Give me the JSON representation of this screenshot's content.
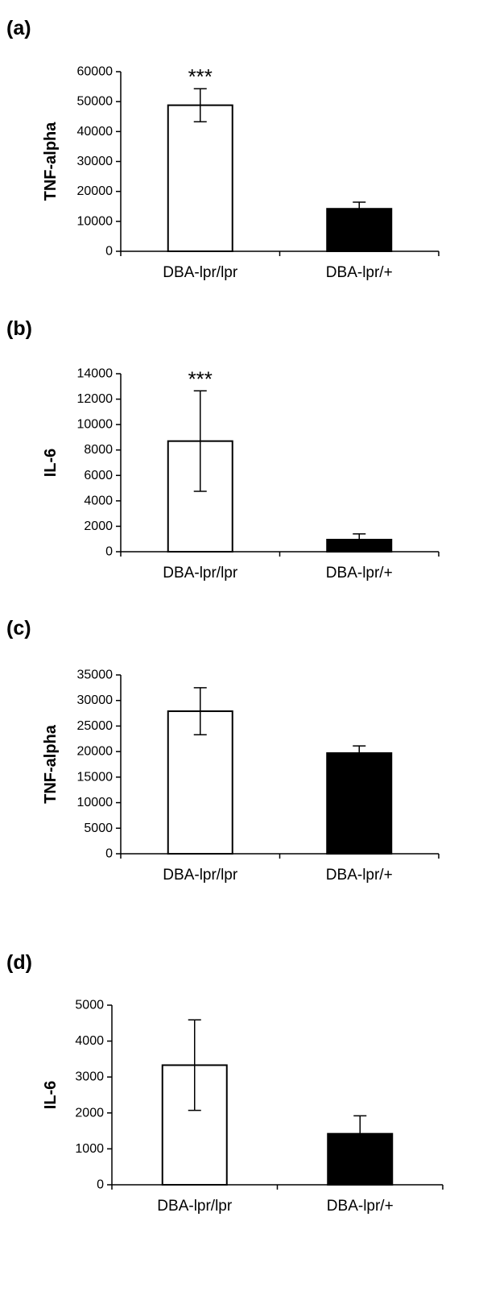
{
  "chart_data": [
    {
      "panel": "(a)",
      "type": "bar",
      "categories": [
        "DBA-lpr/lpr",
        "DBA-lpr/+"
      ],
      "values": [
        48800,
        14200
      ],
      "errors": [
        5500,
        2200
      ],
      "bar_colors": [
        "#ffffff",
        "#000000"
      ],
      "ylabel": "TNF-alpha",
      "ylim": [
        0,
        60000
      ],
      "yticks": [
        0,
        10000,
        20000,
        30000,
        40000,
        50000,
        60000
      ],
      "annotations": [
        "***",
        ""
      ]
    },
    {
      "panel": "(b)",
      "type": "bar",
      "categories": [
        "DBA-lpr/lpr",
        "DBA-lpr/+"
      ],
      "values": [
        8700,
        950
      ],
      "errors": [
        3950,
        450
      ],
      "bar_colors": [
        "#ffffff",
        "#000000"
      ],
      "ylabel": "IL-6",
      "ylim": [
        0,
        14000
      ],
      "yticks": [
        0,
        2000,
        4000,
        6000,
        8000,
        10000,
        12000,
        14000
      ],
      "annotations": [
        "***",
        ""
      ]
    },
    {
      "panel": "(c)",
      "type": "bar",
      "categories": [
        "DBA-lpr/lpr",
        "DBA-lpr/+"
      ],
      "values": [
        27900,
        19700
      ],
      "errors": [
        4600,
        1400
      ],
      "bar_colors": [
        "#ffffff",
        "#000000"
      ],
      "ylabel": "TNF-alpha",
      "ylim": [
        0,
        35000
      ],
      "yticks": [
        0,
        5000,
        10000,
        15000,
        20000,
        25000,
        30000,
        35000
      ],
      "annotations": [
        "",
        ""
      ]
    },
    {
      "panel": "(d)",
      "type": "bar",
      "categories": [
        "DBA-lpr/lpr",
        "DBA-lpr/+"
      ],
      "values": [
        3330,
        1420
      ],
      "errors": [
        1260,
        500
      ],
      "bar_colors": [
        "#ffffff",
        "#000000"
      ],
      "ylabel": "IL-6",
      "ylim": [
        0,
        5000
      ],
      "yticks": [
        0,
        1000,
        2000,
        3000,
        4000,
        5000
      ],
      "annotations": [
        "",
        ""
      ]
    }
  ]
}
